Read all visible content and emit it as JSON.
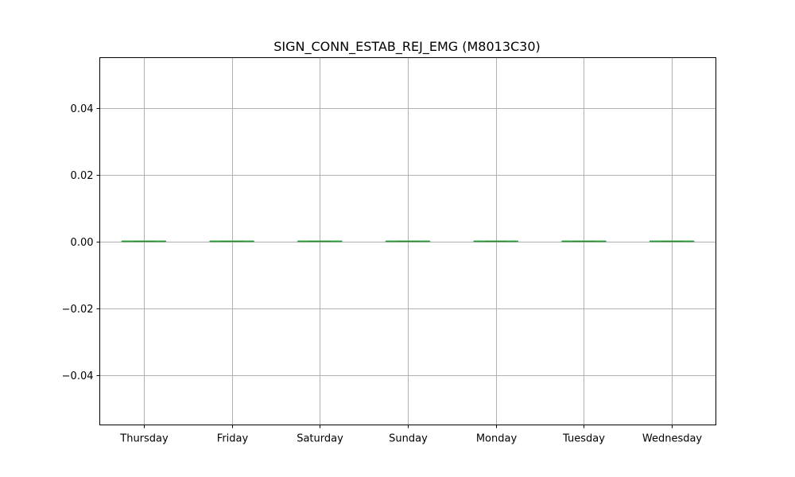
{
  "chart_data": {
    "type": "box",
    "title": "SIGN_CONN_ESTAB_REJ_EMG (M8013C30)",
    "xlabel": "",
    "ylabel": "",
    "categories": [
      "Thursday",
      "Friday",
      "Saturday",
      "Sunday",
      "Monday",
      "Tuesday",
      "Wednesday"
    ],
    "series": [
      {
        "values": [
          {
            "min": 0,
            "q1": 0,
            "median": 0,
            "q3": 0,
            "max": 0
          },
          {
            "min": 0,
            "q1": 0,
            "median": 0,
            "q3": 0,
            "max": 0
          },
          {
            "min": 0,
            "q1": 0,
            "median": 0,
            "q3": 0,
            "max": 0
          },
          {
            "min": 0,
            "q1": 0,
            "median": 0,
            "q3": 0,
            "max": 0
          },
          {
            "min": 0,
            "q1": 0,
            "median": 0,
            "q3": 0,
            "max": 0
          },
          {
            "min": 0,
            "q1": 0,
            "median": 0,
            "q3": 0,
            "max": 0
          },
          {
            "min": 0,
            "q1": 0,
            "median": 0,
            "q3": 0,
            "max": 0
          }
        ]
      }
    ],
    "ylim": [
      -0.055,
      0.055
    ],
    "yticks": [
      -0.04,
      -0.02,
      0.0,
      0.02,
      0.04
    ],
    "ytick_labels": [
      "−0.04",
      "−0.02",
      "0.00",
      "0.02",
      "0.04"
    ],
    "grid": true,
    "colors": {
      "box": "#1f77b4",
      "median": "#2ca02c",
      "grid": "#b0b0b0"
    }
  }
}
